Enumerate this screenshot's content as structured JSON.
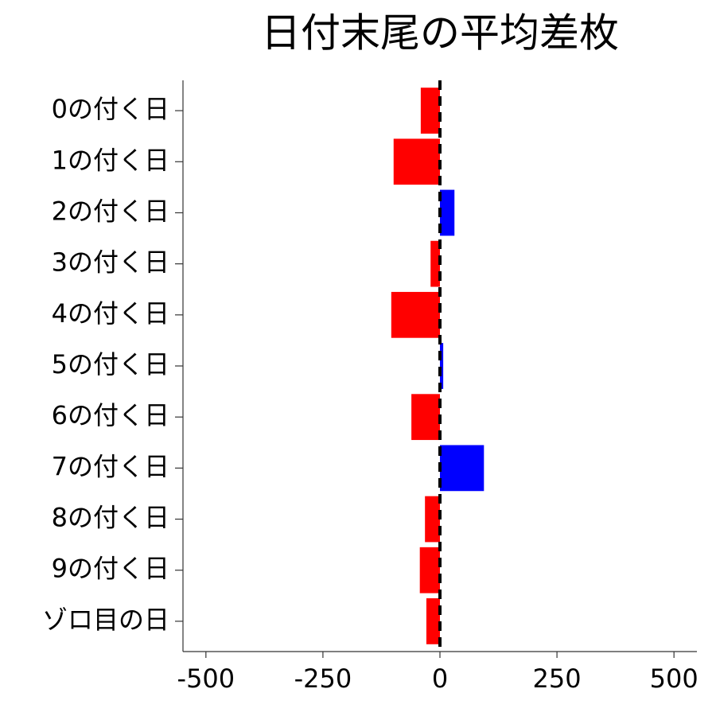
{
  "chart_data": {
    "type": "barh",
    "title": "日付末尾の平均差枚",
    "categories": [
      "0の付く日",
      "1の付く日",
      "2の付く日",
      "3の付く日",
      "4の付く日",
      "5の付く日",
      "6の付く日",
      "7の付く日",
      "8の付く日",
      "9の付く日",
      "ゾロ目の日"
    ],
    "values": [
      -41,
      -99,
      31,
      -20,
      -104,
      7,
      -61,
      94,
      -32,
      -43,
      -29
    ],
    "colors": [
      "#ff0000",
      "#ff0000",
      "#0000ff",
      "#ff0000",
      "#ff0000",
      "#0000ff",
      "#ff0000",
      "#0000ff",
      "#ff0000",
      "#ff0000",
      "#ff0000"
    ],
    "xlim": [
      -549,
      549
    ],
    "xticks": [
      -500,
      -250,
      0,
      250,
      500
    ],
    "reference_line": 0,
    "grid": false
  }
}
